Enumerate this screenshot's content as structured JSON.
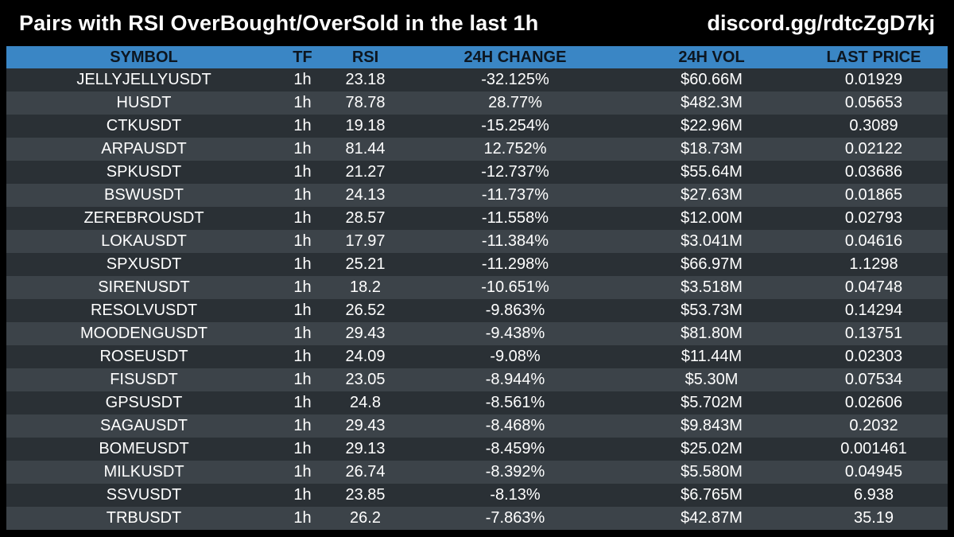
{
  "header": {
    "title": "Pairs with RSI OverBought/OverSold in the last 1h",
    "invite": "discord.gg/rdtcZgD7kj"
  },
  "table": {
    "columns": [
      "SYMBOL",
      "TF",
      "RSI",
      "24H CHANGE",
      "24H VOL",
      "LAST PRICE"
    ],
    "rows": [
      {
        "symbol": "JELLYJELLYUSDT",
        "tf": "1h",
        "rsi": "23.18",
        "change": "-32.125%",
        "vol": "$60.66M",
        "price": "0.01929"
      },
      {
        "symbol": "HUSDT",
        "tf": "1h",
        "rsi": "78.78",
        "change": "28.77%",
        "vol": "$482.3M",
        "price": "0.05653"
      },
      {
        "symbol": "CTKUSDT",
        "tf": "1h",
        "rsi": "19.18",
        "change": "-15.254%",
        "vol": "$22.96M",
        "price": "0.3089"
      },
      {
        "symbol": "ARPAUSDT",
        "tf": "1h",
        "rsi": "81.44",
        "change": "12.752%",
        "vol": "$18.73M",
        "price": "0.02122"
      },
      {
        "symbol": "SPKUSDT",
        "tf": "1h",
        "rsi": "21.27",
        "change": "-12.737%",
        "vol": "$55.64M",
        "price": "0.03686"
      },
      {
        "symbol": "BSWUSDT",
        "tf": "1h",
        "rsi": "24.13",
        "change": "-11.737%",
        "vol": "$27.63M",
        "price": "0.01865"
      },
      {
        "symbol": "ZEREBROUSDT",
        "tf": "1h",
        "rsi": "28.57",
        "change": "-11.558%",
        "vol": "$12.00M",
        "price": "0.02793"
      },
      {
        "symbol": "LOKAUSDT",
        "tf": "1h",
        "rsi": "17.97",
        "change": "-11.384%",
        "vol": "$3.041M",
        "price": "0.04616"
      },
      {
        "symbol": "SPXUSDT",
        "tf": "1h",
        "rsi": "25.21",
        "change": "-11.298%",
        "vol": "$66.97M",
        "price": "1.1298"
      },
      {
        "symbol": "SIRENUSDT",
        "tf": "1h",
        "rsi": "18.2",
        "change": "-10.651%",
        "vol": "$3.518M",
        "price": "0.04748"
      },
      {
        "symbol": "RESOLVUSDT",
        "tf": "1h",
        "rsi": "26.52",
        "change": "-9.863%",
        "vol": "$53.73M",
        "price": "0.14294"
      },
      {
        "symbol": "MOODENGUSDT",
        "tf": "1h",
        "rsi": "29.43",
        "change": "-9.438%",
        "vol": "$81.80M",
        "price": "0.13751"
      },
      {
        "symbol": "ROSEUSDT",
        "tf": "1h",
        "rsi": "24.09",
        "change": "-9.08%",
        "vol": "$11.44M",
        "price": "0.02303"
      },
      {
        "symbol": "FISUSDT",
        "tf": "1h",
        "rsi": "23.05",
        "change": "-8.944%",
        "vol": "$5.30M",
        "price": "0.07534"
      },
      {
        "symbol": "GPSUSDT",
        "tf": "1h",
        "rsi": "24.8",
        "change": "-8.561%",
        "vol": "$5.702M",
        "price": "0.02606"
      },
      {
        "symbol": "SAGAUSDT",
        "tf": "1h",
        "rsi": "29.43",
        "change": "-8.468%",
        "vol": "$9.843M",
        "price": "0.2032"
      },
      {
        "symbol": "BOMEUSDT",
        "tf": "1h",
        "rsi": "29.13",
        "change": "-8.459%",
        "vol": "$25.02M",
        "price": "0.001461"
      },
      {
        "symbol": "MILKUSDT",
        "tf": "1h",
        "rsi": "26.74",
        "change": "-8.392%",
        "vol": "$5.580M",
        "price": "0.04945"
      },
      {
        "symbol": "SSVUSDT",
        "tf": "1h",
        "rsi": "23.85",
        "change": "-8.13%",
        "vol": "$6.765M",
        "price": "6.938"
      },
      {
        "symbol": "TRBUSDT",
        "tf": "1h",
        "rsi": "26.2",
        "change": "-7.863%",
        "vol": "$42.87M",
        "price": "35.19"
      }
    ]
  },
  "colors": {
    "background": "#000000",
    "header_bg": "#3a86c5",
    "row_dark": "#2a3035",
    "row_light": "#3c4349",
    "text": "#ffffff"
  }
}
